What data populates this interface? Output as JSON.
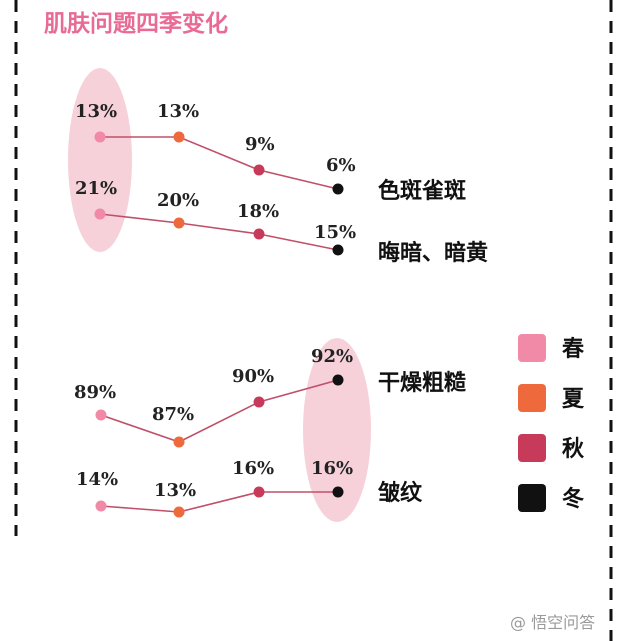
{
  "title": "肌肤问题四季变化",
  "colors": {
    "title": "#e86a95",
    "line": "#c0506a",
    "highlight": "#f4c9d3",
    "spring": "#f08aa6",
    "summer": "#ee6a3c",
    "autumn": "#c83a5a",
    "winter": "#111111"
  },
  "legend": [
    {
      "label": "春",
      "color_key": "spring"
    },
    {
      "label": "夏",
      "color_key": "summer"
    },
    {
      "label": "秋",
      "color_key": "autumn"
    },
    {
      "label": "冬",
      "color_key": "winter"
    }
  ],
  "chart_data": {
    "type": "line",
    "categories": [
      "春",
      "夏",
      "秋",
      "冬"
    ],
    "groups": [
      {
        "highlight_season": "春",
        "series": [
          {
            "name": "色斑雀斑",
            "values": [
              13,
              13,
              9,
              6
            ],
            "labels": [
              "13%",
              "13%",
              "9%",
              "6%"
            ]
          },
          {
            "name": "晦暗、暗黄",
            "values": [
              21,
              20,
              18,
              15
            ],
            "labels": [
              "21%",
              "20%",
              "18%",
              "15%"
            ]
          }
        ]
      },
      {
        "highlight_season": "冬",
        "series": [
          {
            "name": "干燥粗糙",
            "values": [
              89,
              87,
              90,
              92
            ],
            "labels": [
              "89%",
              "87%",
              "90%",
              "92%"
            ]
          },
          {
            "name": "皱纹",
            "values": [
              14,
              13,
              16,
              16
            ],
            "labels": [
              "14%",
              "13%",
              "16%",
              "16%"
            ]
          }
        ]
      }
    ]
  },
  "watermark": "@ 悟空问答"
}
